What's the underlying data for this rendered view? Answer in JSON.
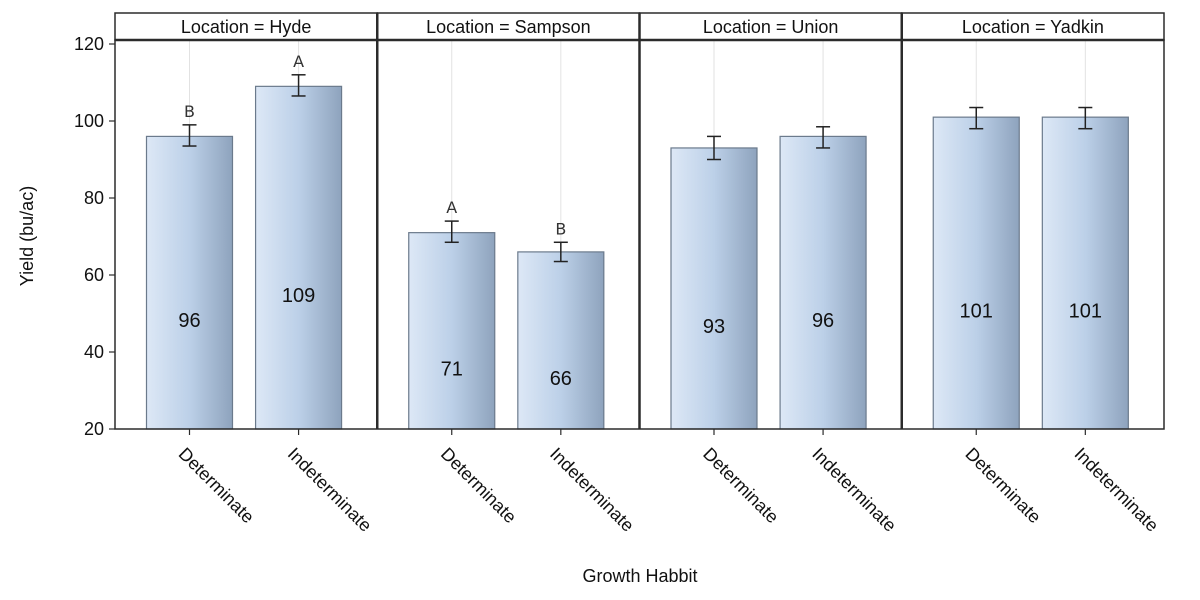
{
  "chart_data": {
    "type": "bar",
    "xlabel": "Growth Habbit",
    "ylabel": "Yield (bu/ac)",
    "ylim": [
      20,
      120
    ],
    "yticks": [
      20,
      40,
      60,
      80,
      100,
      120
    ],
    "panel_prefix": "Location = ",
    "panels": [
      {
        "title": "Location = Hyde",
        "location": "Hyde",
        "categories": [
          "Determinate",
          "Indeterminate"
        ],
        "values": [
          96,
          109
        ],
        "value_labels": [
          "96",
          "109"
        ],
        "error_low": [
          93.5,
          106.5
        ],
        "error_high": [
          99,
          112
        ],
        "letters": [
          "B",
          "A"
        ]
      },
      {
        "title": "Location = Sampson",
        "location": "Sampson",
        "categories": [
          "Determinate",
          "Indeterminate"
        ],
        "values": [
          71,
          66
        ],
        "value_labels": [
          "71",
          "66"
        ],
        "error_low": [
          68.5,
          63.5
        ],
        "error_high": [
          74,
          68.5
        ],
        "letters": [
          "A",
          "B"
        ]
      },
      {
        "title": "Location = Union",
        "location": "Union",
        "categories": [
          "Determinate",
          "Indeterminate"
        ],
        "values": [
          93,
          96
        ],
        "value_labels": [
          "93",
          "96"
        ],
        "error_low": [
          90,
          93
        ],
        "error_high": [
          96,
          98.5
        ],
        "letters": [
          "",
          ""
        ]
      },
      {
        "title": "Location = Yadkin",
        "location": "Yadkin",
        "categories": [
          "Determinate",
          "Indeterminate"
        ],
        "values": [
          101,
          101
        ],
        "value_labels": [
          "101",
          "101"
        ],
        "error_low": [
          98,
          98
        ],
        "error_high": [
          103.5,
          103.5
        ],
        "letters": [
          "",
          ""
        ]
      }
    ],
    "colors": {
      "bar_light": "#dde8f6",
      "bar_mid": "#bcd0e8",
      "bar_dark": "#8ea3bd",
      "bar_outline": "#6b7a8c",
      "frame": "#2b2b2b",
      "grid": "#e2e2e2"
    }
  }
}
